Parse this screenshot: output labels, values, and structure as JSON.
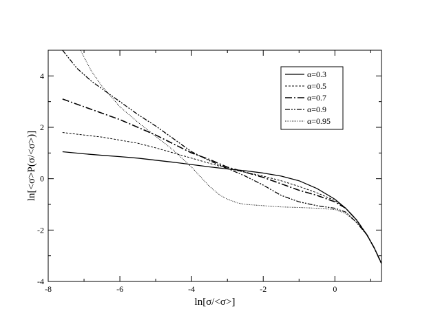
{
  "chart_data": {
    "type": "line",
    "title": "",
    "xlabel": "ln[σ/<σ>]",
    "ylabel": "ln[<σ>P(σ/<σ>)]",
    "xlim": [
      -8,
      1.3
    ],
    "ylim": [
      -4,
      5
    ],
    "xticks": [
      -8,
      -6,
      -4,
      -2,
      0
    ],
    "xtick_labels": [
      "-8",
      "-6",
      "-4",
      "-2",
      "0"
    ],
    "yticks": [
      -4,
      -2,
      0,
      2,
      4
    ],
    "ytick_labels": [
      "-4",
      "-2",
      "0",
      "2",
      "4"
    ],
    "grid": false,
    "legend_position": "top-right",
    "series": [
      {
        "name": "α=0.3",
        "style": "solid",
        "x": [
          -7.6,
          -7.0,
          -6.5,
          -6.0,
          -5.5,
          -5.0,
          -4.5,
          -4.0,
          -3.5,
          -3.0,
          -2.5,
          -2.0,
          -1.5,
          -1.0,
          -0.5,
          0.0,
          0.3,
          0.6,
          0.9,
          1.1,
          1.3
        ],
        "y": [
          1.05,
          0.97,
          0.91,
          0.86,
          0.8,
          0.72,
          0.64,
          0.55,
          0.46,
          0.38,
          0.31,
          0.22,
          0.1,
          -0.08,
          -0.38,
          -0.8,
          -1.15,
          -1.6,
          -2.2,
          -2.7,
          -3.3
        ]
      },
      {
        "name": "α=0.5",
        "style": "dashed",
        "x": [
          -7.6,
          -7.0,
          -6.5,
          -6.0,
          -5.5,
          -5.0,
          -4.5,
          -4.0,
          -3.5,
          -3.0,
          -2.5,
          -2.0,
          -1.5,
          -1.0,
          -0.5,
          0.0,
          0.3,
          0.6,
          0.9,
          1.1,
          1.3
        ],
        "y": [
          1.8,
          1.7,
          1.62,
          1.5,
          1.38,
          1.2,
          1.0,
          0.8,
          0.6,
          0.4,
          0.25,
          0.1,
          -0.08,
          -0.3,
          -0.55,
          -0.85,
          -1.15,
          -1.6,
          -2.2,
          -2.7,
          -3.3
        ]
      },
      {
        "name": "α=0.7",
        "style": "dash-dot",
        "x": [
          -7.6,
          -7.0,
          -6.5,
          -6.0,
          -5.5,
          -5.0,
          -4.5,
          -4.0,
          -3.5,
          -3.0,
          -2.5,
          -2.0,
          -1.5,
          -1.0,
          -0.5,
          0.0,
          0.3,
          0.6,
          0.9,
          1.1,
          1.3
        ],
        "y": [
          3.1,
          2.8,
          2.55,
          2.3,
          2.0,
          1.7,
          1.35,
          1.0,
          0.75,
          0.45,
          0.25,
          0.05,
          -0.2,
          -0.45,
          -0.65,
          -0.9,
          -1.15,
          -1.6,
          -2.2,
          -2.7,
          -3.3
        ]
      },
      {
        "name": "α=0.9",
        "style": "dash-dot-dot",
        "x": [
          -7.6,
          -7.2,
          -6.8,
          -6.5,
          -6.0,
          -5.5,
          -5.0,
          -4.5,
          -4.0,
          -3.5,
          -3.0,
          -2.5,
          -2.0,
          -1.5,
          -1.0,
          -0.5,
          0.0,
          0.3,
          0.6,
          0.9,
          1.1,
          1.3
        ],
        "y": [
          5.0,
          4.3,
          3.8,
          3.5,
          3.0,
          2.5,
          2.05,
          1.55,
          1.05,
          0.7,
          0.4,
          0.1,
          -0.25,
          -0.65,
          -0.9,
          -1.05,
          -1.15,
          -1.3,
          -1.7,
          -2.2,
          -2.7,
          -3.3
        ]
      },
      {
        "name": "α=0.95",
        "style": "dotted",
        "x": [
          -7.1,
          -6.8,
          -6.5,
          -6.0,
          -5.5,
          -5.0,
          -4.5,
          -4.0,
          -3.5,
          -3.2,
          -3.0,
          -2.7,
          -2.5,
          -2.0,
          -1.5,
          -1.0,
          -0.5,
          0.0,
          0.3,
          0.6,
          0.9,
          1.1,
          1.3
        ],
        "y": [
          5.0,
          4.2,
          3.6,
          2.8,
          2.2,
          1.65,
          1.1,
          0.45,
          -0.3,
          -0.65,
          -0.8,
          -0.95,
          -1.0,
          -1.05,
          -1.1,
          -1.12,
          -1.15,
          -1.2,
          -1.35,
          -1.7,
          -2.2,
          -2.7,
          -3.3
        ]
      }
    ]
  }
}
